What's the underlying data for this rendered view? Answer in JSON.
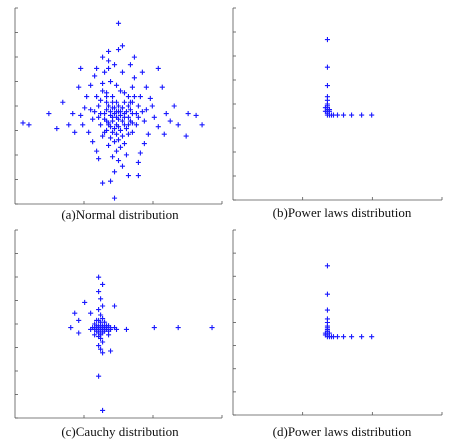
{
  "chart_data": [
    {
      "type": "scatter",
      "caption": "(a)Normal distribution",
      "xlim": [
        0,
        100
      ],
      "ylim": [
        0,
        100
      ],
      "xticks": 3,
      "yticks": 8,
      "grid": false,
      "marker": "plus",
      "color": "#1a1aff",
      "points": [
        [
          50,
          94
        ],
        [
          50,
          80
        ],
        [
          45,
          79
        ],
        [
          52,
          82
        ],
        [
          48,
          72
        ],
        [
          45,
          70
        ],
        [
          52,
          68
        ],
        [
          46,
          63
        ],
        [
          49,
          61
        ],
        [
          51,
          58
        ],
        [
          47,
          55
        ],
        [
          53,
          57
        ],
        [
          44,
          55
        ],
        [
          55,
          55
        ],
        [
          41,
          53
        ],
        [
          57,
          52
        ],
        [
          49,
          52
        ],
        [
          50,
          50
        ],
        [
          47,
          49
        ],
        [
          52,
          49
        ],
        [
          44,
          48
        ],
        [
          56,
          48
        ],
        [
          50,
          47
        ],
        [
          48,
          46
        ],
        [
          53,
          46
        ],
        [
          46,
          45
        ],
        [
          51,
          45
        ],
        [
          49,
          44
        ],
        [
          55,
          44
        ],
        [
          43,
          43
        ],
        [
          50,
          43
        ],
        [
          47,
          42
        ],
        [
          52,
          42
        ],
        [
          45,
          41
        ],
        [
          57,
          41
        ],
        [
          49,
          40
        ],
        [
          53,
          40
        ],
        [
          46,
          39
        ],
        [
          50,
          39
        ],
        [
          48,
          38
        ],
        [
          54,
          38
        ],
        [
          44,
          37
        ],
        [
          51,
          37
        ],
        [
          47,
          36
        ],
        [
          49,
          35
        ],
        [
          55,
          35
        ],
        [
          42,
          34
        ],
        [
          52,
          34
        ],
        [
          46,
          33
        ],
        [
          50,
          32
        ],
        [
          48,
          31
        ],
        [
          53,
          30
        ],
        [
          45,
          29
        ],
        [
          51,
          28
        ],
        [
          49,
          26
        ],
        [
          54,
          24
        ],
        [
          47,
          23
        ],
        [
          50,
          21
        ],
        [
          52,
          18
        ],
        [
          48,
          15
        ],
        [
          55,
          13
        ],
        [
          46,
          10
        ],
        [
          42,
          9
        ],
        [
          60,
          13
        ],
        [
          44,
          57
        ],
        [
          57,
          60
        ],
        [
          42,
          62
        ],
        [
          58,
          65
        ],
        [
          38,
          66
        ],
        [
          62,
          68
        ],
        [
          36,
          61
        ],
        [
          64,
          60
        ],
        [
          34,
          55
        ],
        [
          66,
          54
        ],
        [
          33,
          49
        ],
        [
          67,
          50
        ],
        [
          31,
          45
        ],
        [
          68,
          44
        ],
        [
          32,
          40
        ],
        [
          70,
          39
        ],
        [
          35,
          36
        ],
        [
          65,
          35
        ],
        [
          37,
          31
        ],
        [
          63,
          30
        ],
        [
          39,
          26
        ],
        [
          61,
          25
        ],
        [
          40,
          22
        ],
        [
          60,
          20
        ],
        [
          41,
          46
        ],
        [
          59,
          46
        ],
        [
          40,
          44
        ],
        [
          60,
          44
        ],
        [
          38,
          47
        ],
        [
          62,
          47
        ],
        [
          37,
          43
        ],
        [
          63,
          42
        ],
        [
          36,
          48
        ],
        [
          64,
          48
        ],
        [
          58,
          55
        ],
        [
          42,
          58
        ],
        [
          44,
          52
        ],
        [
          56,
          52
        ],
        [
          45,
          50
        ],
        [
          55,
          50
        ],
        [
          43,
          46
        ],
        [
          57,
          46
        ],
        [
          44,
          42
        ],
        [
          56,
          42
        ],
        [
          45,
          40
        ],
        [
          55,
          40
        ],
        [
          47,
          52
        ],
        [
          53,
          52
        ],
        [
          46,
          47
        ],
        [
          54,
          47
        ],
        [
          48,
          49
        ],
        [
          52,
          49
        ],
        [
          47,
          44
        ],
        [
          53,
          44
        ],
        [
          49,
          47
        ],
        [
          51,
          47
        ],
        [
          40,
          50
        ],
        [
          60,
          50
        ],
        [
          39,
          55
        ],
        [
          61,
          55
        ],
        [
          43,
          36
        ],
        [
          57,
          36
        ],
        [
          41,
          40
        ],
        [
          59,
          40
        ],
        [
          74,
          46
        ],
        [
          76,
          42
        ],
        [
          73,
          35
        ],
        [
          78,
          50
        ],
        [
          80,
          40
        ],
        [
          27,
          46
        ],
        [
          25,
          40
        ],
        [
          22,
          52
        ],
        [
          28,
          36
        ],
        [
          30,
          60
        ],
        [
          72,
          60
        ],
        [
          70,
          70
        ],
        [
          31,
          70
        ],
        [
          15,
          46
        ],
        [
          19,
          38
        ],
        [
          85,
          46
        ],
        [
          84,
          34
        ],
        [
          89,
          45
        ],
        [
          92,
          40
        ],
        [
          5,
          40
        ],
        [
          2,
          41
        ],
        [
          48,
          1
        ],
        [
          42,
          76
        ],
        [
          58,
          76
        ],
        [
          43,
          68
        ],
        [
          56,
          72
        ],
        [
          39,
          70
        ],
        [
          45,
          74
        ]
      ]
    },
    {
      "type": "scatter",
      "caption": "(b)Power laws distribution",
      "xlim": [
        0,
        100
      ],
      "ylim": [
        0,
        100
      ],
      "xticks": 3,
      "yticks": 8,
      "grid": false,
      "marker": "plus",
      "color": "#1a1aff",
      "points": [
        [
          45,
          85
        ],
        [
          45,
          70
        ],
        [
          45,
          60
        ],
        [
          45,
          54
        ],
        [
          45,
          52
        ],
        [
          45,
          50
        ],
        [
          45,
          49
        ],
        [
          45,
          48
        ],
        [
          45,
          47
        ],
        [
          45,
          46
        ],
        [
          45,
          45
        ],
        [
          46,
          44
        ],
        [
          47,
          44
        ],
        [
          48,
          44
        ],
        [
          50,
          44
        ],
        [
          53,
          44
        ],
        [
          57,
          44
        ],
        [
          62,
          44
        ],
        [
          67,
          44
        ],
        [
          45,
          44
        ],
        [
          44,
          46
        ],
        [
          46,
          46
        ],
        [
          44,
          48
        ],
        [
          46,
          47
        ]
      ]
    },
    {
      "type": "scatter",
      "caption": "(c)Cauchy distribution",
      "xlim": [
        0,
        100
      ],
      "ylim": [
        0,
        100
      ],
      "xticks": 3,
      "yticks": 8,
      "grid": false,
      "marker": "plus",
      "color": "#1a1aff",
      "points": [
        [
          40,
          76
        ],
        [
          42,
          72
        ],
        [
          40,
          68
        ],
        [
          41,
          64
        ],
        [
          42,
          60
        ],
        [
          40,
          58
        ],
        [
          41,
          55
        ],
        [
          42,
          53
        ],
        [
          40,
          52
        ],
        [
          41,
          51
        ],
        [
          38,
          50
        ],
        [
          39,
          49
        ],
        [
          40,
          49
        ],
        [
          41,
          49
        ],
        [
          42,
          49
        ],
        [
          43,
          49
        ],
        [
          44,
          49
        ],
        [
          45,
          49
        ],
        [
          37,
          48
        ],
        [
          38,
          48
        ],
        [
          39,
          48
        ],
        [
          40,
          48
        ],
        [
          41,
          48
        ],
        [
          42,
          48
        ],
        [
          43,
          48
        ],
        [
          44,
          48
        ],
        [
          46,
          48
        ],
        [
          48,
          48
        ],
        [
          36,
          47
        ],
        [
          38,
          47
        ],
        [
          40,
          47
        ],
        [
          42,
          47
        ],
        [
          44,
          47
        ],
        [
          46,
          47
        ],
        [
          49,
          47
        ],
        [
          39,
          46
        ],
        [
          41,
          46
        ],
        [
          43,
          46
        ],
        [
          45,
          46
        ],
        [
          40,
          45
        ],
        [
          42,
          45
        ],
        [
          41,
          44
        ],
        [
          40,
          43
        ],
        [
          41,
          42
        ],
        [
          42,
          40
        ],
        [
          40,
          38
        ],
        [
          41,
          36
        ],
        [
          42,
          34
        ],
        [
          46,
          35
        ],
        [
          40,
          21
        ],
        [
          42,
          2
        ],
        [
          30,
          52
        ],
        [
          28,
          56
        ],
        [
          36,
          56
        ],
        [
          33,
          62
        ],
        [
          48,
          60
        ],
        [
          26,
          48
        ],
        [
          30,
          45
        ],
        [
          68,
          48
        ],
        [
          80,
          48
        ],
        [
          97,
          48
        ],
        [
          54,
          47
        ],
        [
          38,
          44
        ],
        [
          45,
          44
        ],
        [
          43,
          51
        ],
        [
          39,
          52
        ]
      ]
    },
    {
      "type": "scatter",
      "caption": "(d)Power laws distribution",
      "xlim": [
        0,
        100
      ],
      "ylim": [
        0,
        100
      ],
      "xticks": 3,
      "yticks": 8,
      "grid": false,
      "marker": "plus",
      "color": "#1a1aff",
      "points": [
        [
          45,
          82
        ],
        [
          45,
          66
        ],
        [
          45,
          57
        ],
        [
          45,
          52
        ],
        [
          45,
          50
        ],
        [
          45,
          48
        ],
        [
          45,
          47
        ],
        [
          45,
          46
        ],
        [
          45,
          45
        ],
        [
          45,
          44
        ],
        [
          45,
          43
        ],
        [
          45,
          42
        ],
        [
          46,
          42
        ],
        [
          47,
          42
        ],
        [
          48,
          42
        ],
        [
          50,
          42
        ],
        [
          53,
          42
        ],
        [
          57,
          42
        ],
        [
          62,
          42
        ],
        [
          67,
          42
        ],
        [
          44,
          44
        ],
        [
          46,
          44
        ],
        [
          44,
          43
        ]
      ]
    }
  ]
}
